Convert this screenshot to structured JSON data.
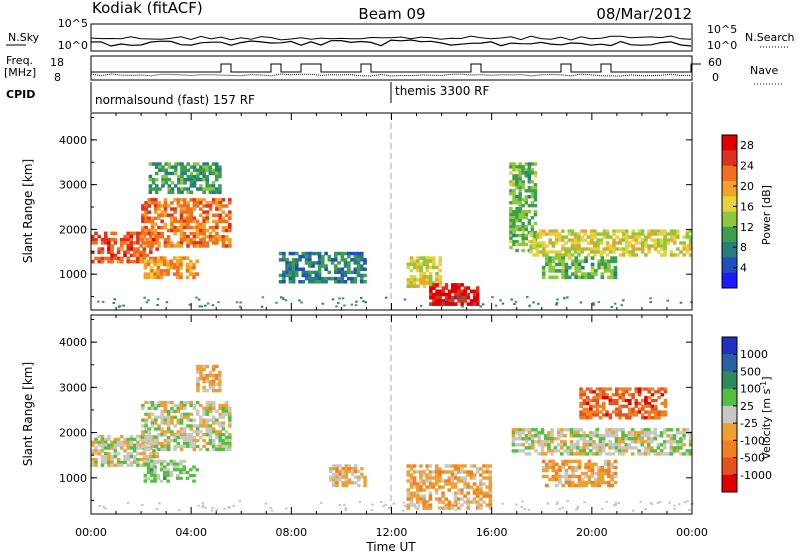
{
  "header": {
    "station": "Kodiak (fitACF)",
    "beam": "Beam 09",
    "date": "08/Mar/2012"
  },
  "noise_panel": {
    "left_label": "N.Sky",
    "right_label": "N.Search",
    "left_ticks": [
      "10^5",
      "10^0"
    ],
    "right_ticks": [
      "10^5",
      "10^0"
    ]
  },
  "freq_panel": {
    "left_label_line1": "Freq.",
    "left_label_line2": "[MHz]",
    "right_label": "Nave",
    "left_ticks": [
      "18",
      "8"
    ],
    "right_ticks": [
      "60",
      "0"
    ]
  },
  "cpid_panel": {
    "label": "CPID",
    "modes": [
      {
        "name": "normalsound (fast) 157 RF",
        "start": "00:00",
        "end": "12:00"
      },
      {
        "name": "themis 3300 RF",
        "start": "12:00",
        "end": "24:00"
      }
    ]
  },
  "colors": {
    "power_scale": [
      "#1a1aff",
      "#2050c0",
      "#2a7d7d",
      "#3aa050",
      "#8cc83c",
      "#e6d23c",
      "#f5a028",
      "#f07020",
      "#e03020",
      "#e00000"
    ],
    "velocity_scale": [
      "#2030c0",
      "#2a60a0",
      "#2c8a5a",
      "#50c040",
      "#c8c8c0",
      "#f0a030",
      "#f08020",
      "#e85020",
      "#e00000"
    ]
  },
  "chart_data": [
    {
      "type": "heatmap",
      "panel": "power",
      "ylabel": "Slant Range [km]",
      "yticks": [
        "1000",
        "2000",
        "3000",
        "4000"
      ],
      "ylim": [
        200,
        4600
      ],
      "x_range_hours": [
        0,
        24
      ],
      "colorbar": {
        "label": "Power [dB]",
        "ticks": [
          "4",
          "8",
          "12",
          "16",
          "20",
          "24",
          "28"
        ],
        "range": [
          0,
          30
        ]
      },
      "regions": [
        {
          "t0": 0.0,
          "t1": 2.7,
          "r0": 1250,
          "r1": 1950,
          "value": 24
        },
        {
          "t0": 2.0,
          "t1": 5.6,
          "r0": 1600,
          "r1": 2700,
          "value": 22
        },
        {
          "t0": 2.1,
          "t1": 4.3,
          "r0": 900,
          "r1": 1400,
          "value": 20
        },
        {
          "t0": 2.3,
          "t1": 5.2,
          "r0": 2800,
          "r1": 3500,
          "value": 10
        },
        {
          "t0": 7.5,
          "t1": 11.0,
          "r0": 800,
          "r1": 1500,
          "value": 8
        },
        {
          "t0": 12.6,
          "t1": 14.0,
          "r0": 700,
          "r1": 1400,
          "value": 16
        },
        {
          "t0": 13.5,
          "t1": 15.5,
          "r0": 300,
          "r1": 800,
          "value": 28
        },
        {
          "t0": 16.7,
          "t1": 17.8,
          "r0": 1500,
          "r1": 3500,
          "value": 12
        },
        {
          "t0": 17.5,
          "t1": 24.0,
          "r0": 1400,
          "r1": 2000,
          "value": 16
        },
        {
          "t0": 18.0,
          "t1": 21.0,
          "r0": 900,
          "r1": 1400,
          "value": 12
        }
      ]
    },
    {
      "type": "heatmap",
      "panel": "velocity",
      "ylabel": "Slant Range [km]",
      "xlabel": "Time UT",
      "yticks": [
        "1000",
        "2000",
        "3000",
        "4000"
      ],
      "xticks": [
        "00:00",
        "04:00",
        "08:00",
        "12:00",
        "16:00",
        "20:00",
        "00:00"
      ],
      "ylim": [
        200,
        4600
      ],
      "x_range_hours": [
        0,
        24
      ],
      "colorbar": {
        "label": "Velocity [m s",
        "label_sup": "-1",
        "ticks": [
          "1000",
          "500",
          "100",
          "25",
          "-25",
          "-100",
          "-500",
          "-1000"
        ],
        "range": [
          -1200,
          1200
        ]
      },
      "regions": [
        {
          "t0": 0.0,
          "t1": 2.7,
          "r0": 1250,
          "r1": 1950,
          "value": 0
        },
        {
          "t0": 2.0,
          "t1": 5.6,
          "r0": 1600,
          "r1": 2700,
          "value": 0
        },
        {
          "t0": 2.1,
          "t1": 4.3,
          "r0": 900,
          "r1": 1400,
          "value": 150
        },
        {
          "t0": 4.2,
          "t1": 5.2,
          "r0": 2900,
          "r1": 3500,
          "value": -200
        },
        {
          "t0": 9.5,
          "t1": 11.0,
          "r0": 800,
          "r1": 1300,
          "value": -200
        },
        {
          "t0": 12.6,
          "t1": 16.0,
          "r0": 300,
          "r1": 1300,
          "value": -250
        },
        {
          "t0": 16.8,
          "t1": 24.0,
          "r0": 1500,
          "r1": 2100,
          "value": 0
        },
        {
          "t0": 18.0,
          "t1": 21.0,
          "r0": 800,
          "r1": 1400,
          "value": -300
        },
        {
          "t0": 19.5,
          "t1": 23.0,
          "r0": 2300,
          "r1": 3000,
          "value": -700
        }
      ]
    }
  ]
}
